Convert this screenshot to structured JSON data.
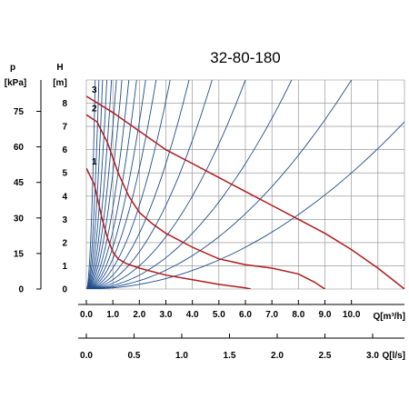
{
  "chart_data": {
    "type": "line",
    "title": "32-80-180",
    "y_axis_H": {
      "name": "H",
      "unit": "[m]",
      "range": [
        0,
        9
      ],
      "ticks": [
        0,
        1,
        2,
        3,
        4,
        5,
        6,
        7,
        8
      ]
    },
    "y_axis_p": {
      "name": "p",
      "unit": "[kPa]",
      "ticks": [
        {
          "label": "0",
          "H": 0
        },
        {
          "label": "15",
          "H": 1.53
        },
        {
          "label": "30",
          "H": 3.06
        },
        {
          "label": "45",
          "H": 4.59
        },
        {
          "label": "60",
          "H": 6.12
        },
        {
          "label": "75",
          "H": 7.65
        }
      ]
    },
    "x_axis_Q_m3h": {
      "label": "Q[m³/h]",
      "range": [
        0,
        12
      ],
      "ticks": [
        "0.0",
        "1.0",
        "2.0",
        "3.0",
        "4.0",
        "5.0",
        "6.0",
        "7.0",
        "8.0",
        "9.0",
        "10.0"
      ]
    },
    "x_axis_Q_ls": {
      "label": "Q[l/s]",
      "ticks": [
        {
          "label": "0.0",
          "Q": 0
        },
        {
          "label": "0.5",
          "Q": 1.8
        },
        {
          "label": "1.0",
          "Q": 3.6
        },
        {
          "label": "1.5",
          "Q": 5.4
        },
        {
          "label": "2.0",
          "Q": 7.2
        },
        {
          "label": "2.5",
          "Q": 9.0
        },
        {
          "label": "3.0",
          "Q": 10.8
        }
      ]
    },
    "grid": true,
    "system_curve_coefficients": [
      80,
      40,
      24,
      15,
      10,
      7,
      5,
      3.5,
      2.5,
      1.8,
      1.3,
      0.9,
      0.6,
      0.4,
      0.25,
      0.15,
      0.09,
      0.05
    ],
    "series": [
      {
        "name": "1",
        "x": [
          0,
          0.3,
          0.6,
          0.8,
          1.0,
          1.2,
          1.5,
          2.0,
          3.0,
          4.0,
          5.0,
          6.0,
          6.2
        ],
        "y": [
          5.2,
          4.5,
          3.0,
          2.2,
          1.6,
          1.3,
          1.1,
          0.9,
          0.6,
          0.4,
          0.2,
          0.05,
          0.0
        ]
      },
      {
        "name": "2",
        "x": [
          0,
          0.4,
          0.8,
          1.2,
          1.6,
          2.0,
          2.5,
          3.0,
          4.0,
          5.0,
          6.0,
          7.0,
          8.0,
          8.6,
          9.0
        ],
        "y": [
          7.5,
          7.2,
          6.3,
          5.0,
          4.0,
          3.3,
          2.8,
          2.4,
          1.8,
          1.3,
          1.05,
          0.9,
          0.65,
          0.3,
          0.0
        ]
      },
      {
        "name": "3",
        "x": [
          0,
          1.0,
          2.0,
          3.0,
          4.0,
          5.0,
          6.0,
          7.0,
          8.0,
          9.0,
          10.0,
          11.0,
          12.0
        ],
        "y": [
          8.3,
          7.6,
          6.8,
          6.0,
          5.4,
          4.8,
          4.2,
          3.6,
          3.0,
          2.4,
          1.7,
          0.9,
          0.0
        ]
      }
    ],
    "colors": {
      "curve": "#b01c1c",
      "system": "#1f4e8c",
      "grid": "#888888"
    }
  }
}
